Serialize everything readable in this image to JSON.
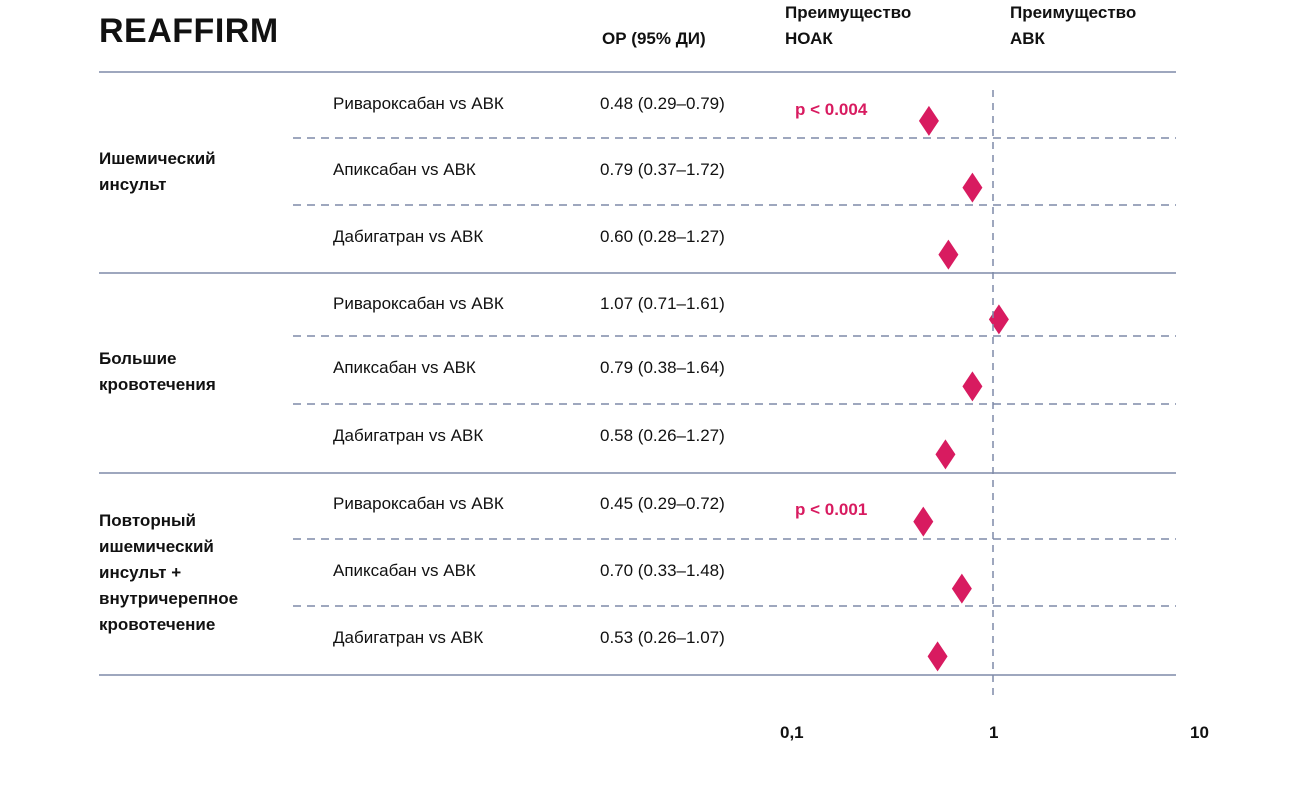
{
  "title": "REAFFIRM",
  "headers": {
    "or": "ОР (95% ДИ)",
    "favors_noak_line1": "Преимущество",
    "favors_noak_line2": "НОАК",
    "favors_avk_line1": "Преимущество",
    "favors_avk_line2": "АВК"
  },
  "colors": {
    "marker": "#d81b60",
    "line": "#7f8aa8"
  },
  "chart_data": {
    "type": "forest",
    "x_scale": "log",
    "xlim": [
      0.1,
      10
    ],
    "reference": 1,
    "ticks": [
      "0,1",
      "1",
      "10"
    ],
    "groups": [
      {
        "label_lines": [
          "Ишемический",
          "инсульт"
        ],
        "rows": [
          {
            "drug": "Ривароксабан vs АВК",
            "or_text": "0.48 (0.29–0.79)",
            "or": 0.48,
            "pvalue": "p < 0.004"
          },
          {
            "drug": "Апиксабан vs АВК",
            "or_text": "0.79 (0.37–1.72)",
            "or": 0.79
          },
          {
            "drug": "Дабигатран vs АВК",
            "or_text": "0.60 (0.28–1.27)",
            "or": 0.6
          }
        ]
      },
      {
        "label_lines": [
          "Большие",
          "кровотечения"
        ],
        "rows": [
          {
            "drug": "Ривароксабан vs АВК",
            "or_text": "1.07 (0.71–1.61)",
            "or": 1.07
          },
          {
            "drug": "Апиксабан vs АВК",
            "or_text": "0.79 (0.38–1.64)",
            "or": 0.79
          },
          {
            "drug": "Дабигатран vs АВК",
            "or_text": "0.58 (0.26–1.27)",
            "or": 0.58
          }
        ]
      },
      {
        "label_lines": [
          "Повторный",
          "ишемический",
          "инсульт +",
          "внутричерепное",
          "кровотечение"
        ],
        "rows": [
          {
            "drug": "Ривароксабан vs АВК",
            "or_text": "0.45 (0.29–0.72)",
            "or": 0.45,
            "pvalue": "p < 0.001"
          },
          {
            "drug": "Апиксабан vs АВК",
            "or_text": "0.70 (0.33–1.48)",
            "or": 0.7
          },
          {
            "drug": "Дабигатран vs АВК",
            "or_text": "0.53 (0.26–1.07)",
            "or": 0.53
          }
        ]
      }
    ]
  }
}
